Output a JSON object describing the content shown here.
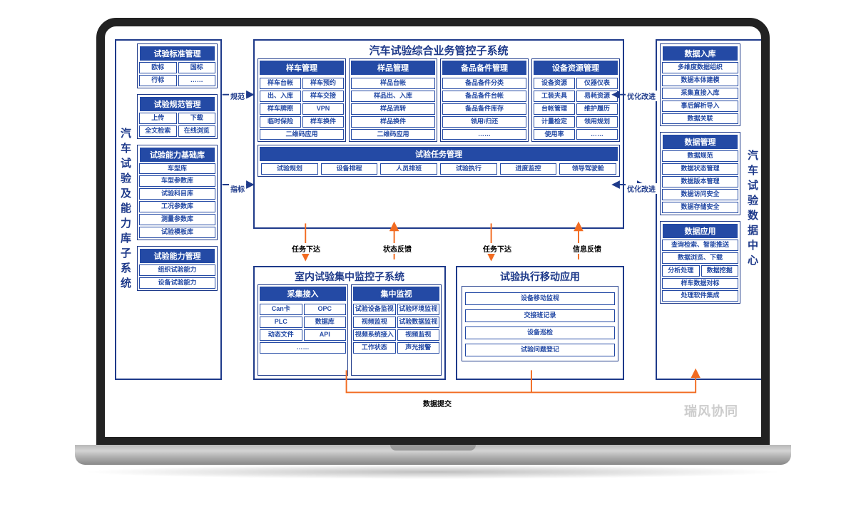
{
  "colors": {
    "border": "#1e3a8a",
    "fill": "#244aa5",
    "arrow_blue": "#1e3a8a",
    "arrow_orange": "#f26b21"
  },
  "left_system": {
    "title": "汽车试验及能力库子系统",
    "groups": [
      {
        "title": "试验标准管理",
        "rows": [
          [
            "欧标",
            "国标"
          ],
          [
            "行标",
            "……"
          ]
        ]
      },
      {
        "title": "试验规范管理",
        "rows": [
          [
            "上传",
            "下载"
          ],
          [
            "全文检索",
            "在线浏览"
          ]
        ]
      },
      {
        "title": "试验能力基础库",
        "rows": [
          [
            "车型库"
          ],
          [
            "车型参数库"
          ],
          [
            "试验科目库"
          ],
          [
            "工况参数库"
          ],
          [
            "测量参数库"
          ],
          [
            "试验模板库"
          ]
        ]
      },
      {
        "title": "试验能力管理",
        "rows": [
          [
            "组织试验能力"
          ],
          [
            "设备试验能力"
          ]
        ]
      }
    ]
  },
  "top_system": {
    "title": "汽车试验综合业务管控子系统",
    "subs": [
      {
        "title": "样车管理",
        "rows": [
          [
            "样车台帐",
            "样车预约"
          ],
          [
            "出、入库",
            "样车交接"
          ],
          [
            "样车牌照",
            "VPN"
          ],
          [
            "临时保险",
            "样车换件"
          ],
          [
            "二维码应用"
          ]
        ]
      },
      {
        "title": "样品管理",
        "rows": [
          [
            "样品台帐"
          ],
          [
            "样品出、入库"
          ],
          [
            "样品流转"
          ],
          [
            "样品换件"
          ],
          [
            "二维码应用"
          ]
        ]
      },
      {
        "title": "备品备件管理",
        "rows": [
          [
            "备品备件分类"
          ],
          [
            "备品备件台帐"
          ],
          [
            "备品备件库存"
          ],
          [
            "领用\\归还"
          ],
          [
            "……"
          ]
        ]
      },
      {
        "title": "设备资源管理",
        "rows": [
          [
            "设备资源",
            "仪器仪表"
          ],
          [
            "工装夹具",
            "易耗资源"
          ],
          [
            "台帐管理",
            "维护履历"
          ],
          [
            "计量检定",
            "领用规划"
          ],
          [
            "使用率",
            "……"
          ]
        ]
      }
    ],
    "task": {
      "title": "试验任务管理",
      "items": [
        "试验规划",
        "设备排程",
        "人员排班",
        "试验执行",
        "进度监控",
        "领导驾驶舱"
      ]
    }
  },
  "indoor_system": {
    "title": "室内试验集中监控子系统",
    "subs": [
      {
        "title": "采集接入",
        "rows": [
          [
            "Can卡",
            "OPC"
          ],
          [
            "PLC",
            "数据库"
          ],
          [
            "动态文件",
            "API"
          ],
          [
            "……"
          ]
        ]
      },
      {
        "title": "集中监视",
        "rows": [
          [
            "试验设备监视",
            "试验环境监视"
          ],
          [
            "视频监视",
            "试验数据监视"
          ],
          [
            "视频系统接入",
            "视频监视"
          ],
          [
            "工作状态",
            "声光报警"
          ]
        ]
      }
    ]
  },
  "mobile_system": {
    "title": "试验执行移动应用",
    "rows": [
      [
        "设备移动监视"
      ],
      [
        "交接班记录"
      ],
      [
        "设备巡检"
      ],
      [
        "试验问题登记"
      ]
    ]
  },
  "right_system": {
    "title": "汽车试验数据中心",
    "groups": [
      {
        "title": "数据入库",
        "rows": [
          [
            "多维度数据组织"
          ],
          [
            "数据本体建模"
          ],
          [
            "采集直接入库"
          ],
          [
            "事后解析导入"
          ],
          [
            "数据关联"
          ]
        ]
      },
      {
        "title": "数据管理",
        "rows": [
          [
            "数据规范"
          ],
          [
            "数据状态管理"
          ],
          [
            "数据版本管理"
          ],
          [
            "数据访问安全"
          ],
          [
            "数据存储安全"
          ]
        ]
      },
      {
        "title": "数据应用",
        "rows": [
          [
            "查询检索、智能推送"
          ],
          [
            "数据浏览、下载"
          ],
          [
            "分析处理",
            "数据挖掘"
          ],
          [
            "样车数据对标"
          ],
          [
            "处理软件集成"
          ]
        ]
      }
    ]
  },
  "edges": {
    "left_to_top_1": "规范",
    "left_to_top_2": "指标",
    "top_to_right_1": "优化改进",
    "top_to_right_2": "优化改进",
    "under_top": [
      "任务下达",
      "状态反馈",
      "任务下达",
      "信息反馈"
    ],
    "bottom": "数据提交"
  },
  "watermark": "瑞风协同"
}
